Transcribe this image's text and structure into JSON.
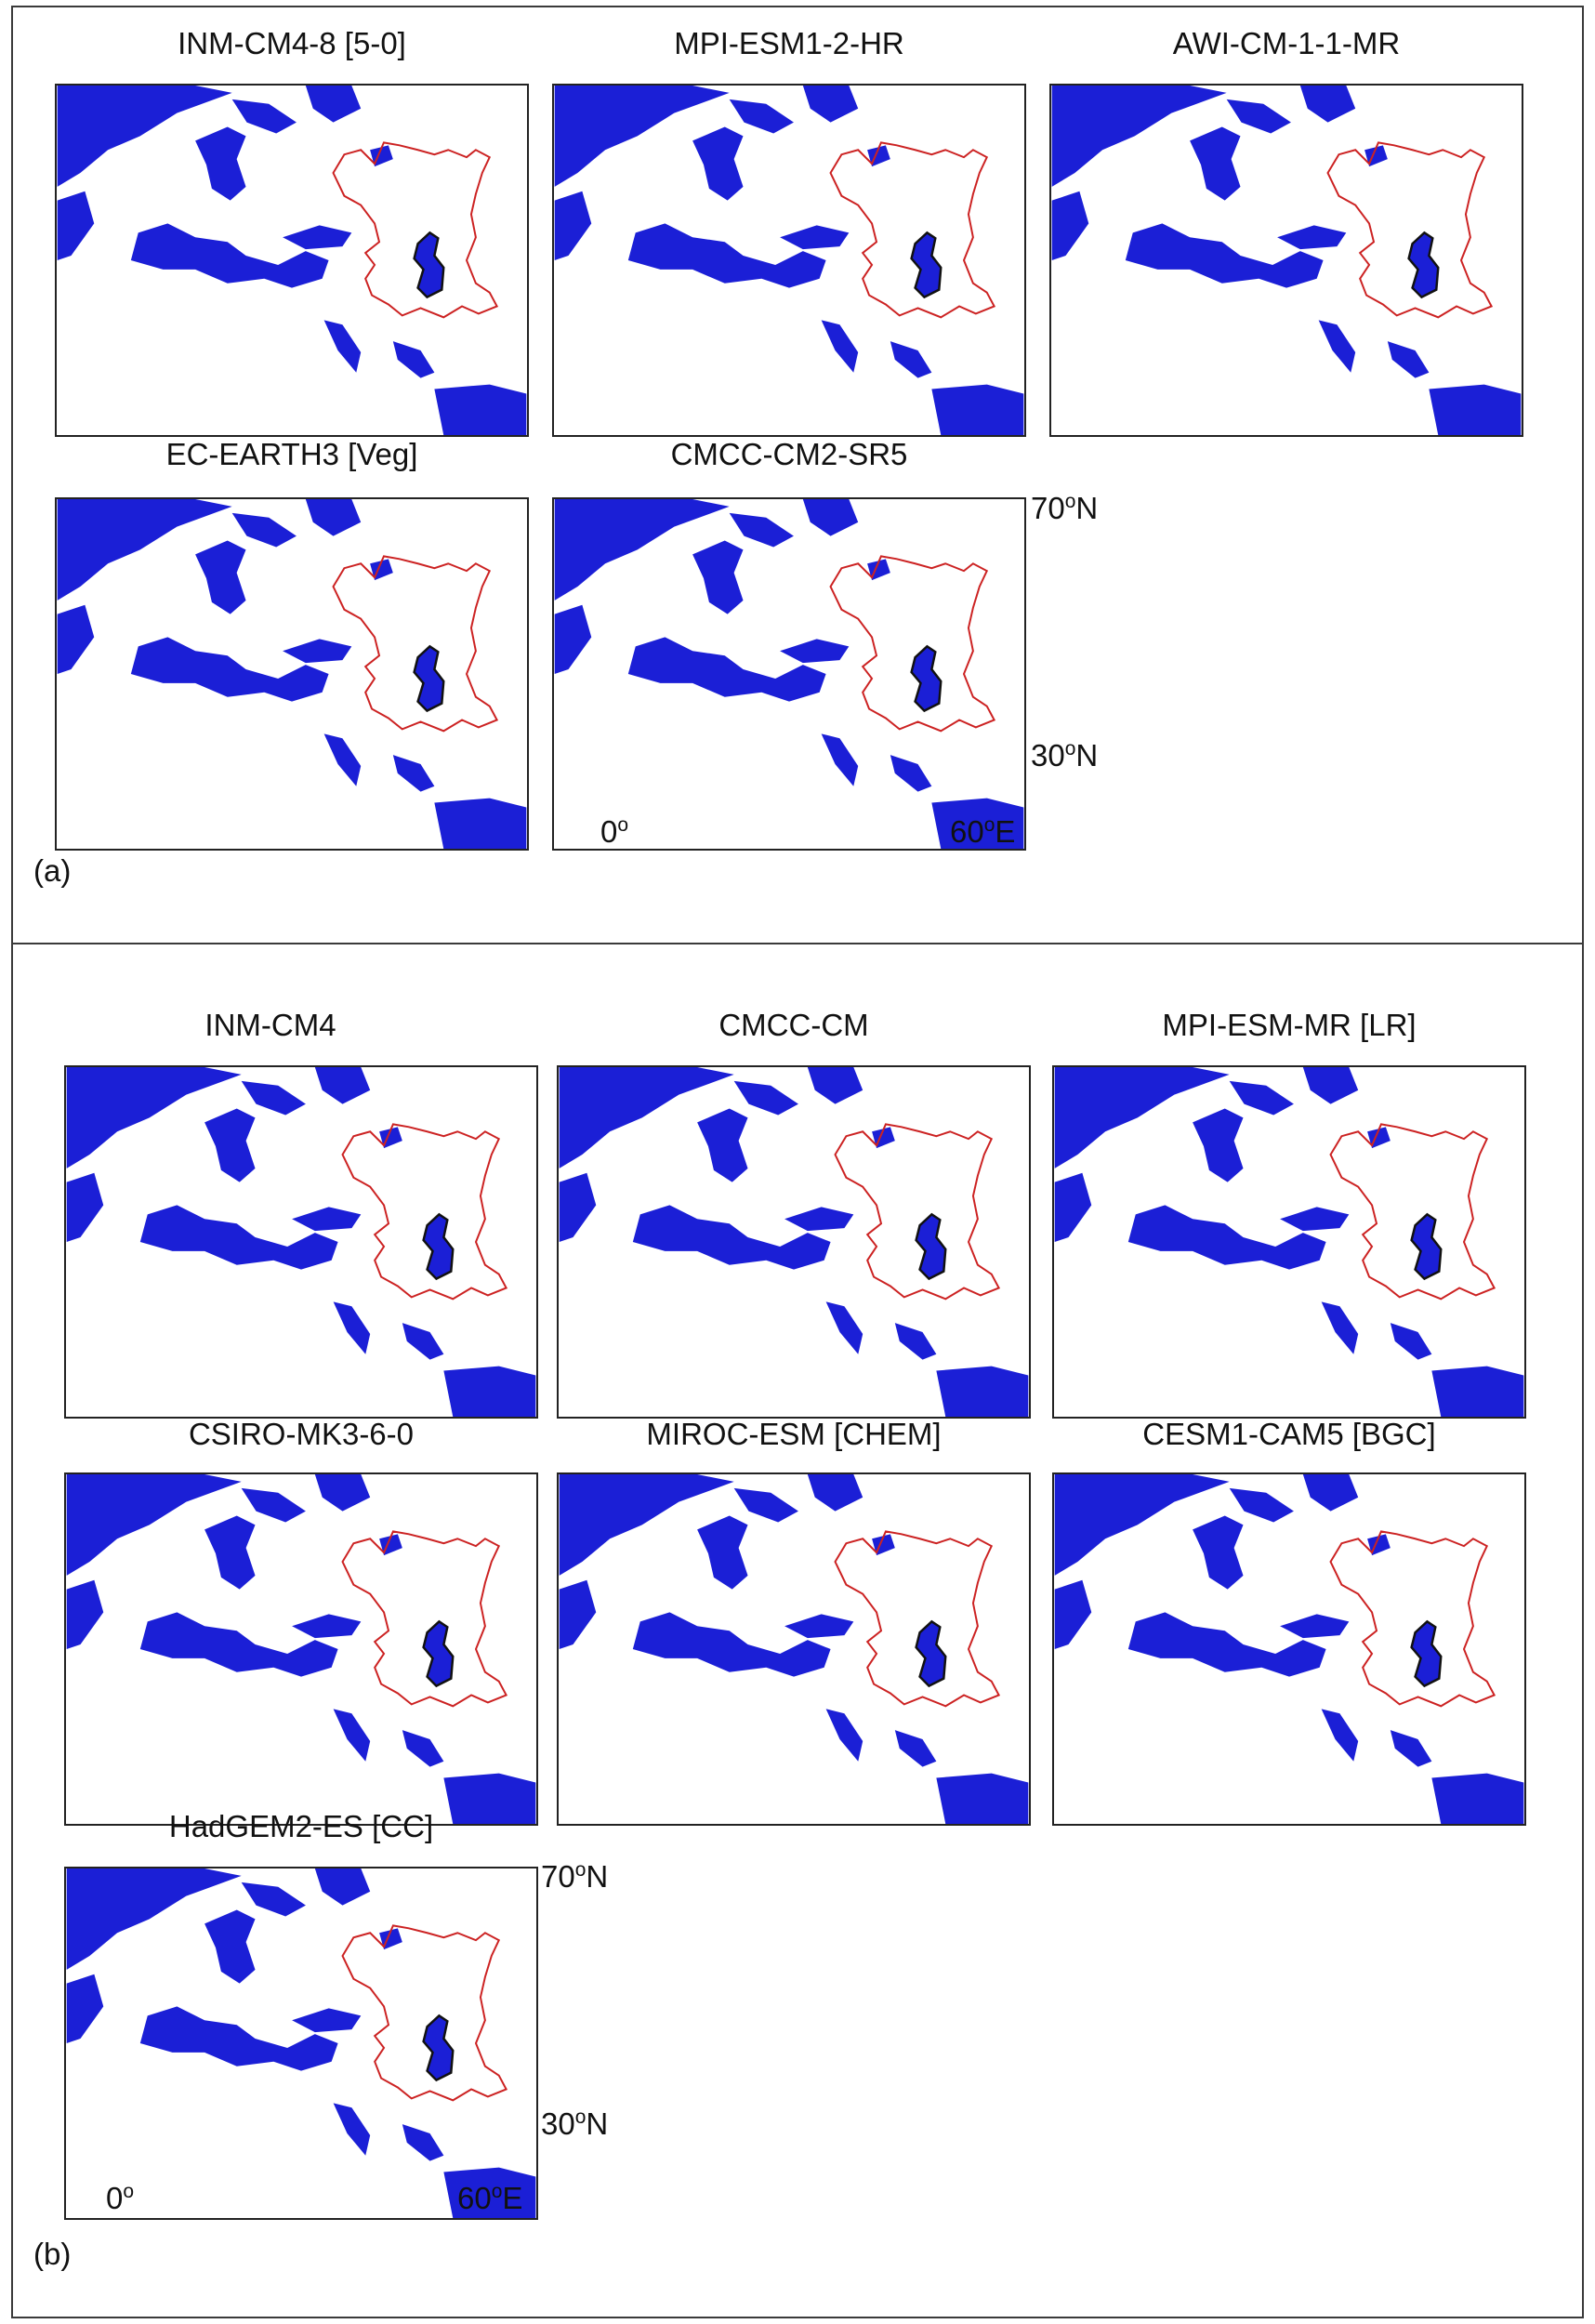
{
  "panels": [
    {
      "label": "(a)",
      "maps": [
        {
          "title": "INM-CM4-8 [5-0]"
        },
        {
          "title": "MPI-ESM1-2-HR"
        },
        {
          "title": "AWI-CM-1-1-MR"
        },
        {
          "title": "EC-EARTH3 [Veg]"
        },
        {
          "title": "CMCC-CM2-SR5"
        }
      ],
      "axis": {
        "lat_top": "70",
        "lat_bottom": "30",
        "lat_unit": "N",
        "lon_left": "0",
        "lon_right": "60",
        "lon_unit": "E",
        "deg": "o"
      }
    },
    {
      "label": "(b)",
      "maps": [
        {
          "title": "INM-CM4"
        },
        {
          "title": "CMCC-CM"
        },
        {
          "title": "MPI-ESM-MR [LR]"
        },
        {
          "title": "CSIRO-MK3-6-0"
        },
        {
          "title": "MIROC-ESM [CHEM]"
        },
        {
          "title": "CESM1-CAM5 [BGC]"
        },
        {
          "title": "HadGEM2-ES [CC]"
        }
      ],
      "axis": {
        "lat_top": "70",
        "lat_bottom": "30",
        "lat_unit": "N",
        "lon_left": "0",
        "lon_right": "60",
        "lon_unit": "E",
        "deg": "o"
      }
    }
  ],
  "colors": {
    "sea_mask": "#1b1fd6",
    "boundary": "#cc2222",
    "lake_outline": "#111111",
    "background": "#ffffff"
  }
}
